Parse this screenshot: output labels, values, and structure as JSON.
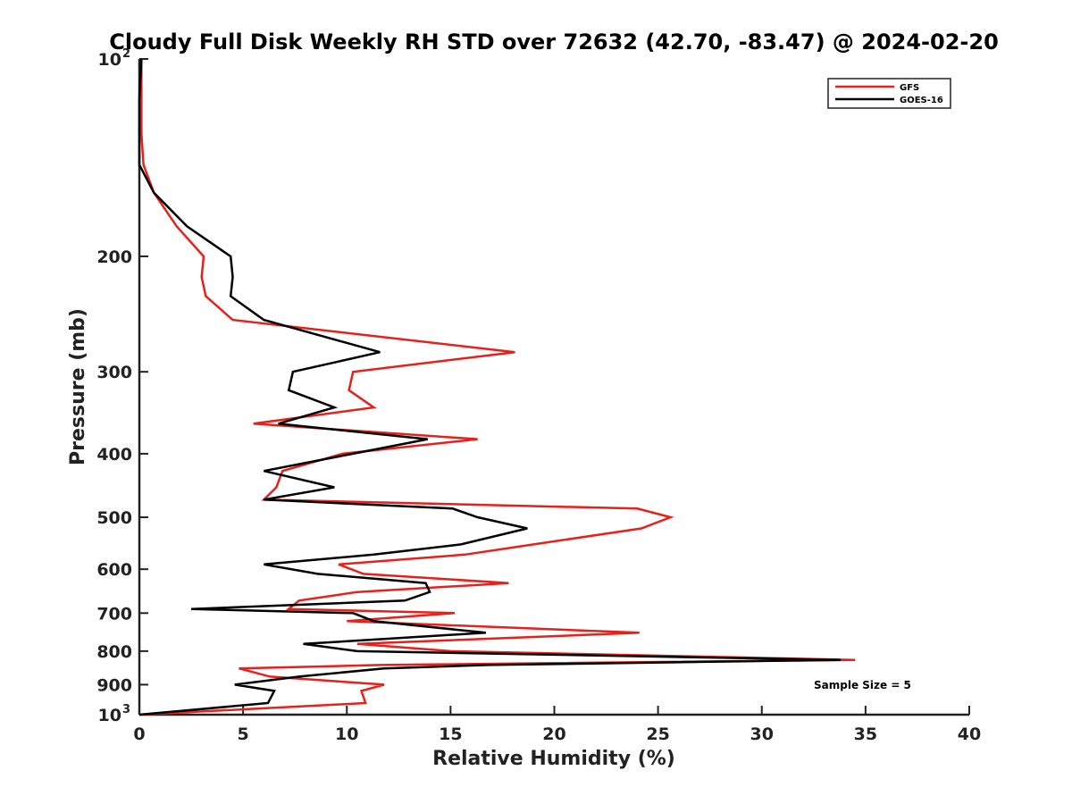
{
  "chart_data": {
    "type": "line",
    "title": "Cloudy Full Disk Weekly RH STD over 72632 (42.70, -83.47) @ 2024-02-20",
    "xlabel": "Relative Humidity (%)",
    "ylabel": "Pressure (mb)",
    "xlim": [
      0,
      40
    ],
    "ylim": [
      100,
      1000
    ],
    "y_scale": "log",
    "y_reversed": true,
    "grid": false,
    "legend_position": "top-right",
    "x_ticks": [
      "0",
      "5",
      "10",
      "15",
      "20",
      "25",
      "30",
      "35",
      "40"
    ],
    "x_tick_values": [
      0,
      5,
      10,
      15,
      20,
      25,
      30,
      35,
      40
    ],
    "y_ticks": [
      {
        "value": 100,
        "base": "10",
        "exp": "2"
      },
      {
        "value": 200,
        "base": "200",
        "exp": ""
      },
      {
        "value": 300,
        "base": "300",
        "exp": ""
      },
      {
        "value": 400,
        "base": "400",
        "exp": ""
      },
      {
        "value": 500,
        "base": "500",
        "exp": ""
      },
      {
        "value": 600,
        "base": "600",
        "exp": ""
      },
      {
        "value": 700,
        "base": "700",
        "exp": ""
      },
      {
        "value": 800,
        "base": "800",
        "exp": ""
      },
      {
        "value": 900,
        "base": "900",
        "exp": ""
      },
      {
        "value": 1000,
        "base": "10",
        "exp": "3"
      }
    ],
    "series": [
      {
        "name": "GFS",
        "color": "#e8201b",
        "points": [
          [
            0.1,
            100
          ],
          [
            0.1,
            115
          ],
          [
            0.1,
            130
          ],
          [
            0.2,
            145
          ],
          [
            0.7,
            160
          ],
          [
            1.8,
            180
          ],
          [
            3.1,
            200
          ],
          [
            3.0,
            215
          ],
          [
            3.2,
            230
          ],
          [
            4.5,
            250
          ],
          [
            18.1,
            280
          ],
          [
            10.3,
            300
          ],
          [
            10.1,
            320
          ],
          [
            11.3,
            340
          ],
          [
            5.5,
            360
          ],
          [
            16.3,
            380
          ],
          [
            9.8,
            400
          ],
          [
            6.9,
            425
          ],
          [
            6.6,
            450
          ],
          [
            6.0,
            470
          ],
          [
            24.0,
            485
          ],
          [
            25.6,
            500
          ],
          [
            24.2,
            520
          ],
          [
            19.0,
            550
          ],
          [
            15.7,
            570
          ],
          [
            9.6,
            590
          ],
          [
            10.8,
            610
          ],
          [
            17.8,
            630
          ],
          [
            10.5,
            650
          ],
          [
            7.7,
            670
          ],
          [
            7.2,
            690
          ],
          [
            15.2,
            700
          ],
          [
            10.0,
            720
          ],
          [
            24.1,
            750
          ],
          [
            10.5,
            780
          ],
          [
            15.0,
            800
          ],
          [
            34.5,
            825
          ],
          [
            11.6,
            840
          ],
          [
            4.8,
            850
          ],
          [
            6.3,
            875
          ],
          [
            11.8,
            900
          ],
          [
            10.7,
            920
          ],
          [
            10.9,
            960
          ],
          [
            0.0,
            1000
          ]
        ]
      },
      {
        "name": "GOES-16",
        "color": "#000000",
        "points": [
          [
            0.1,
            100
          ],
          [
            0.0,
            115
          ],
          [
            0.0,
            130
          ],
          [
            0.0,
            145
          ],
          [
            0.7,
            160
          ],
          [
            2.3,
            180
          ],
          [
            4.4,
            200
          ],
          [
            4.5,
            215
          ],
          [
            4.4,
            230
          ],
          [
            6.0,
            250
          ],
          [
            11.6,
            280
          ],
          [
            7.4,
            300
          ],
          [
            7.2,
            320
          ],
          [
            9.4,
            340
          ],
          [
            6.7,
            360
          ],
          [
            13.9,
            380
          ],
          [
            10.3,
            400
          ],
          [
            6.0,
            425
          ],
          [
            9.4,
            450
          ],
          [
            6.0,
            470
          ],
          [
            15.1,
            485
          ],
          [
            16.3,
            500
          ],
          [
            18.7,
            520
          ],
          [
            15.5,
            550
          ],
          [
            11.3,
            570
          ],
          [
            6.0,
            590
          ],
          [
            8.6,
            610
          ],
          [
            13.8,
            630
          ],
          [
            14.0,
            650
          ],
          [
            12.8,
            670
          ],
          [
            2.5,
            690
          ],
          [
            10.3,
            700
          ],
          [
            11.3,
            720
          ],
          [
            16.7,
            750
          ],
          [
            7.9,
            780
          ],
          [
            10.5,
            800
          ],
          [
            33.8,
            825
          ],
          [
            16.8,
            840
          ],
          [
            11.8,
            850
          ],
          [
            7.7,
            875
          ],
          [
            4.6,
            900
          ],
          [
            6.5,
            920
          ],
          [
            6.2,
            960
          ],
          [
            0.0,
            1000
          ]
        ]
      }
    ],
    "annotation": "Sample Size = 5"
  }
}
